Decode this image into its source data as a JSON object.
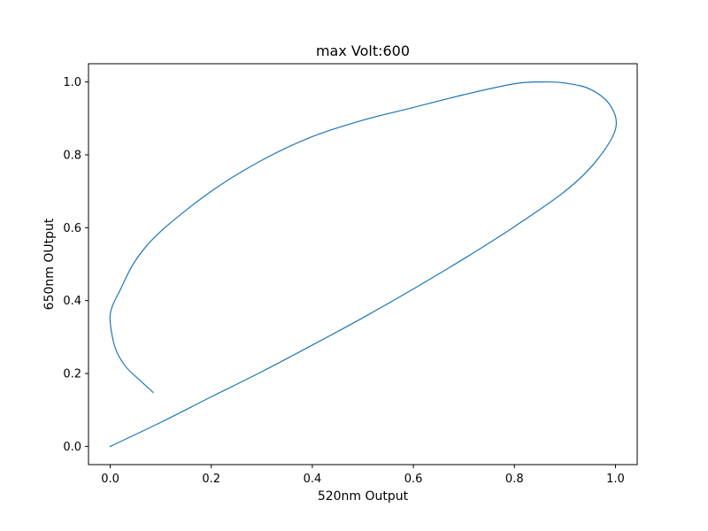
{
  "chart_data": {
    "type": "line",
    "title": "max Volt:600",
    "xlabel": "520nm Output",
    "ylabel": "650nm OUtput",
    "xlim": [
      -0.043,
      1.043
    ],
    "ylim": [
      -0.05,
      1.05
    ],
    "x_ticks": [
      0.0,
      0.2,
      0.4,
      0.6,
      0.8,
      1.0
    ],
    "y_ticks": [
      0.0,
      0.2,
      0.4,
      0.6,
      0.8,
      1.0
    ],
    "x_tick_labels": [
      "0.0",
      "0.2",
      "0.4",
      "0.6",
      "0.8",
      "1.0"
    ],
    "y_tick_labels": [
      "0.0",
      "0.2",
      "0.4",
      "0.6",
      "0.8",
      "1.0"
    ],
    "grid": false,
    "legend": "none",
    "series": [
      {
        "color": "#1f77b4",
        "x": [
          0.0,
          0.1,
          0.2,
          0.3,
          0.4,
          0.5,
          0.6,
          0.7,
          0.8,
          0.9,
          0.96,
          1.0,
          0.99,
          0.95,
          0.9,
          0.855,
          0.8,
          0.7,
          0.6,
          0.5,
          0.4,
          0.3,
          0.2,
          0.1,
          0.05,
          0.02,
          0.003,
          0.0,
          0.01,
          0.03,
          0.06,
          0.085
        ],
        "y": [
          0.0,
          0.066,
          0.136,
          0.205,
          0.278,
          0.353,
          0.432,
          0.515,
          0.603,
          0.7,
          0.78,
          0.87,
          0.935,
          0.98,
          0.997,
          1.0,
          0.995,
          0.965,
          0.93,
          0.895,
          0.85,
          0.785,
          0.7,
          0.59,
          0.51,
          0.43,
          0.38,
          0.34,
          0.27,
          0.22,
          0.18,
          0.148
        ]
      }
    ]
  }
}
